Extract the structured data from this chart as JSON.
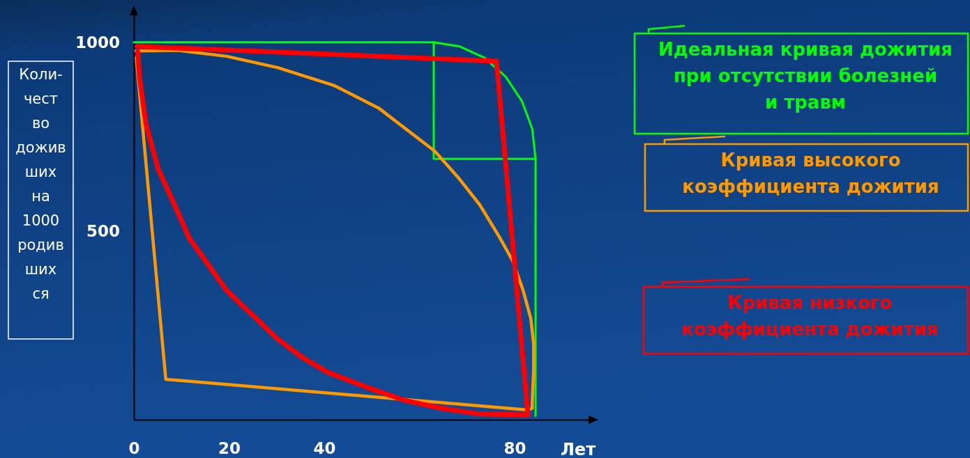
{
  "chart_data": {
    "type": "line",
    "xlabel": "Лет",
    "ylabel": "Коли-\nчест\nво\nдожив\nших\nна\n1000\nродив\nших\nся",
    "xlim": [
      0,
      97
    ],
    "xticks": [
      0,
      20,
      40,
      80
    ],
    "ylim": [
      0,
      1090
    ],
    "yticks": [
      500,
      1000
    ],
    "legend": "right",
    "series": [
      {
        "name": "Идеальная кривая дожития при отсутствии болезней и травм",
        "color": "#00ff00",
        "x": [
          0,
          63,
          68.5,
          73.7,
          78.1,
          81.5,
          83.7,
          84.4,
          84.4,
          null,
          63,
          63,
          84.4
        ],
        "values": [
          1000,
          1000,
          989,
          959,
          909,
          845,
          771,
          691,
          10,
          null,
          1000,
          691,
          691
        ]
      },
      {
        "name": "Кривая высокого коэффициента дожития",
        "color": "#ff9900",
        "x": [
          0.4,
          8.9,
          19.5,
          30.2,
          42.2,
          51.4,
          63.2,
          68.4,
          72.7,
          76.9,
          79.6,
          81.8,
          83.4,
          84,
          84,
          83.7,
          83.7,
          82.8,
          6.7,
          0.5
        ],
        "values": [
          977,
          979,
          963,
          933,
          885,
          826,
          712,
          638,
          569,
          482,
          421,
          342,
          268,
          200,
          133,
          46,
          30,
          26,
          107,
          960
        ]
      },
      {
        "name": "Кривая низкого коэффициента дожития",
        "color": "#ff0000",
        "x": [
          0.7,
          76.2,
          82.8,
          82.3,
          72.7,
          64.7,
          56.7,
          48.7,
          40.7,
          35.5,
          30.2,
          19.5,
          11.6,
          7.3,
          5.1,
          2.5,
          1.2,
          0.8
        ],
        "values": [
          989,
          950,
          13,
          13,
          15,
          30,
          52,
          87,
          126,
          164,
          214,
          342,
          482,
          604,
          664,
          786,
          906,
          975
        ]
      }
    ]
  }
}
